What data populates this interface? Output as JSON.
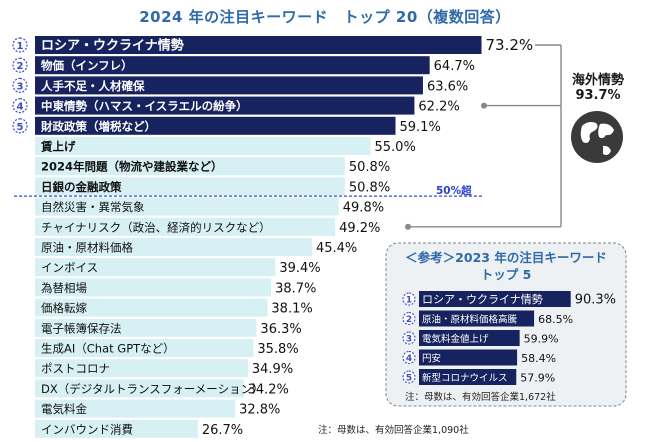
{
  "title": "2024 年の注目キーワード　トップ 20（複数回答）",
  "group_label": {
    "name": "海外情勢",
    "value": "93.7%"
  },
  "fifty_label": "50%超",
  "note_main": "注：母数は、有効回答企業1,090社",
  "reference": {
    "title_line1": "＜参考＞2023 年の注目キーワード",
    "title_line2": "トップ 5",
    "note": "注：母数は、有効回答企業1,672社"
  },
  "colors": {
    "top5": "#17235e",
    "light": "#d6f0f4",
    "accent": "#2e6aa8",
    "rank_badge": "#3a4bd0"
  },
  "chart_data": [
    {
      "type": "bar",
      "orientation": "horizontal",
      "title": "2024 年の注目キーワード　トップ 20（複数回答）",
      "categories": [
        "ロシア・ウクライナ情勢",
        "物価（インフレ）",
        "人手不足・人材確保",
        "中東情勢（ハマス・イスラエルの紛争）",
        "財政政策（増税など）",
        "賃上げ",
        "2024年問題（物流や建設業など）",
        "日銀の金融政策",
        "自然災害・異常気象",
        "チャイナリスク（政治、経済的リスクなど）",
        "原油・原材料価格",
        "インボイス",
        "為替相場",
        "価格転嫁",
        "電子帳簿保存法",
        "生成AI（Chat GPTなど）",
        "ポストコロナ",
        "DX（デジタルトランスフォーメーション）",
        "電気料金",
        "インバウンド消費"
      ],
      "values": [
        73.2,
        64.7,
        63.6,
        62.2,
        59.1,
        55.0,
        50.8,
        50.8,
        49.8,
        49.2,
        45.4,
        39.4,
        38.7,
        38.1,
        36.3,
        35.8,
        34.9,
        34.2,
        32.8,
        26.7
      ],
      "labels": [
        "73.2%",
        "64.7%",
        "63.6%",
        "62.2%",
        "59.1%",
        "55.0%",
        "50.8%",
        "50.8%",
        "49.8%",
        "49.2%",
        "45.4%",
        "39.4%",
        "38.7%",
        "38.1%",
        "36.3%",
        "35.8%",
        "34.9%",
        "34.2%",
        "32.8%",
        "26.7%"
      ],
      "ranks": [
        "1",
        "2",
        "3",
        "4",
        "5"
      ]
    },
    {
      "type": "bar",
      "orientation": "horizontal",
      "title": "＜参考＞2023 年の注目キーワード トップ 5",
      "categories": [
        "ロシア・ウクライナ情勢",
        "原油・原材料価格高騰",
        "電気料金値上げ",
        "円安",
        "新型コロナウイルス"
      ],
      "values": [
        90.3,
        68.5,
        59.9,
        58.4,
        57.9
      ],
      "labels": [
        "90.3%",
        "68.5%",
        "59.9%",
        "58.4%",
        "57.9%"
      ],
      "ranks": [
        "1",
        "2",
        "3",
        "4",
        "5"
      ]
    }
  ]
}
